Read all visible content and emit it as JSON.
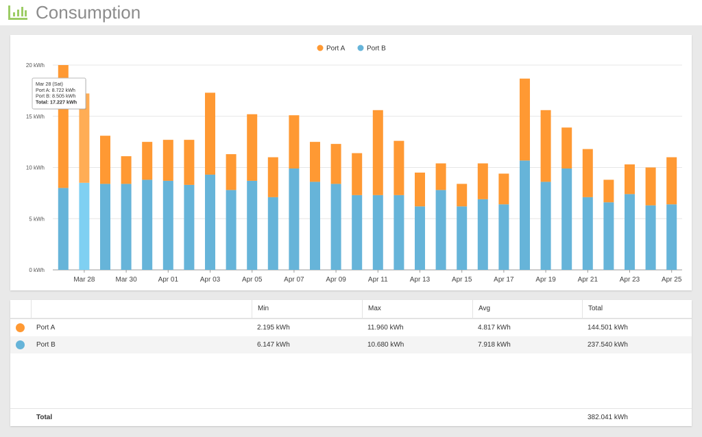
{
  "header": {
    "title": "Consumption",
    "icon": "bar-chart-icon"
  },
  "colors": {
    "port_a": "#ff9933",
    "port_b": "#66b4d9",
    "port_b_hover": "#7fd0f2",
    "port_a_hover": "#ffad55",
    "logo": "#9ccc65"
  },
  "chart_data": {
    "type": "bar",
    "stacked": true,
    "categories": [
      "Mar 27",
      "Mar 28",
      "Mar 29",
      "Mar 30",
      "Mar 31",
      "Apr 01",
      "Apr 02",
      "Apr 03",
      "Apr 04",
      "Apr 05",
      "Apr 06",
      "Apr 07",
      "Apr 08",
      "Apr 09",
      "Apr 10",
      "Apr 11",
      "Apr 12",
      "Apr 13",
      "Apr 14",
      "Apr 15",
      "Apr 16",
      "Apr 17",
      "Apr 18",
      "Apr 19",
      "Apr 20",
      "Apr 21",
      "Apr 22",
      "Apr 23",
      "Apr 24",
      "Apr 25"
    ],
    "x_tick_labels": [
      "Mar 28",
      "Mar 30",
      "Apr 01",
      "Apr 03",
      "Apr 05",
      "Apr 07",
      "Apr 09",
      "Apr 11",
      "Apr 13",
      "Apr 15",
      "Apr 17",
      "Apr 19",
      "Apr 21",
      "Apr 23",
      "Apr 25"
    ],
    "series": [
      {
        "name": "Port A",
        "color": "#ff9933",
        "values": [
          12.0,
          8.722,
          4.7,
          2.7,
          3.7,
          4.0,
          4.4,
          8.0,
          3.5,
          6.5,
          3.9,
          5.2,
          3.9,
          3.9,
          4.1,
          8.3,
          5.3,
          3.3,
          2.6,
          2.2,
          3.5,
          3.0,
          8.0,
          7.0,
          4.0,
          4.7,
          2.2,
          2.9,
          3.7,
          4.6
        ]
      },
      {
        "name": "Port B",
        "color": "#66b4d9",
        "values": [
          8.0,
          8.505,
          8.4,
          8.4,
          8.8,
          8.7,
          8.3,
          9.3,
          7.8,
          8.7,
          7.1,
          9.9,
          8.6,
          8.4,
          7.3,
          7.3,
          7.3,
          6.2,
          7.8,
          6.2,
          6.9,
          6.4,
          10.68,
          8.6,
          9.9,
          7.1,
          6.6,
          7.4,
          6.3,
          6.4
        ]
      }
    ],
    "ylim": [
      0,
      20
    ],
    "y_ticks": [
      0,
      5,
      10,
      15,
      20
    ],
    "y_tick_labels": [
      "0 kWh",
      "5 kWh",
      "10 kWh",
      "15 kWh",
      "20 kWh"
    ],
    "legend": "top-center",
    "grid": true,
    "highlight_index": 1,
    "tooltip": {
      "date": "Mar 28 (Sat)",
      "port_a": "Port A: 8.722 kWh",
      "port_b": "Port B: 8.505 kWh",
      "total": "Total: 17.227 kWh"
    }
  },
  "table": {
    "columns": [
      "",
      "",
      "Min",
      "Max",
      "Avg",
      "Total"
    ],
    "rows": [
      {
        "name": "Port A",
        "color": "#ff9933",
        "min": "2.195 kWh",
        "max": "11.960 kWh",
        "avg": "4.817 kWh",
        "total": "144.501 kWh"
      },
      {
        "name": "Port B",
        "color": "#66b4d9",
        "min": "6.147 kWh",
        "max": "10.680 kWh",
        "avg": "7.918 kWh",
        "total": "237.540 kWh"
      }
    ],
    "total_label": "Total",
    "total_value": "382.041 kWh"
  }
}
